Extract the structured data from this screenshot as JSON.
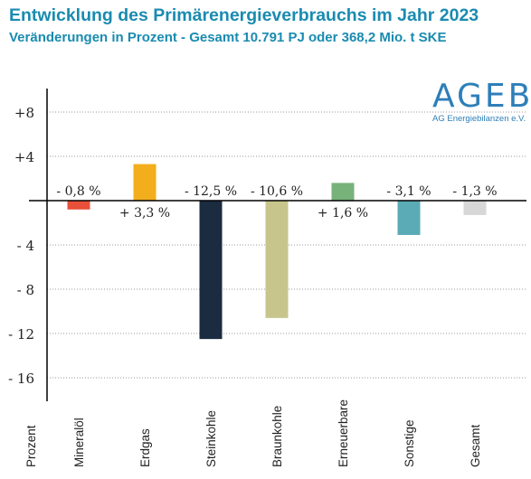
{
  "header": {
    "title": "Entwicklung des Primärenergieverbrauchs im Jahr 2023",
    "subtitle": "Veränderungen in Prozent - Gesamt 10.791 PJ oder 368,2 Mio. t SKE"
  },
  "logo": {
    "word": "AGEB",
    "sub": "AG Energiebilanzen e.V."
  },
  "chart_data": {
    "type": "bar",
    "title": "Entwicklung des Primärenergieverbrauchs im Jahr 2023",
    "subtitle": "Veränderungen in Prozent - Gesamt 10.791 PJ oder 368,2 Mio. t SKE",
    "ylabel": "Prozent",
    "xlabel": "",
    "ylim": [
      -20,
      10
    ],
    "yticks": [
      8,
      4,
      -4,
      -8,
      -12,
      -16
    ],
    "ytick_labels": [
      "+8",
      "+4",
      "- 4",
      "- 8",
      "- 12",
      "- 16"
    ],
    "grid": true,
    "categories": [
      "Mineralöl",
      "Erdgas",
      "Steinkohle",
      "Braunkohle",
      "Erneuerbare",
      "Sonstige",
      "Gesamt"
    ],
    "values": [
      -0.8,
      3.3,
      -12.5,
      -10.6,
      1.6,
      -3.1,
      -1.3
    ],
    "value_labels": [
      "- 0,8 %",
      "+ 3,3 %",
      "- 12,5 %",
      "- 10,6 %",
      "+ 1,6 %",
      "- 3,1 %",
      "- 1,3 %"
    ],
    "colors": [
      "#e8503a",
      "#f2ae1c",
      "#1b2b40",
      "#c8c58c",
      "#77b27a",
      "#5aabb6",
      "#d7d7d7"
    ]
  }
}
